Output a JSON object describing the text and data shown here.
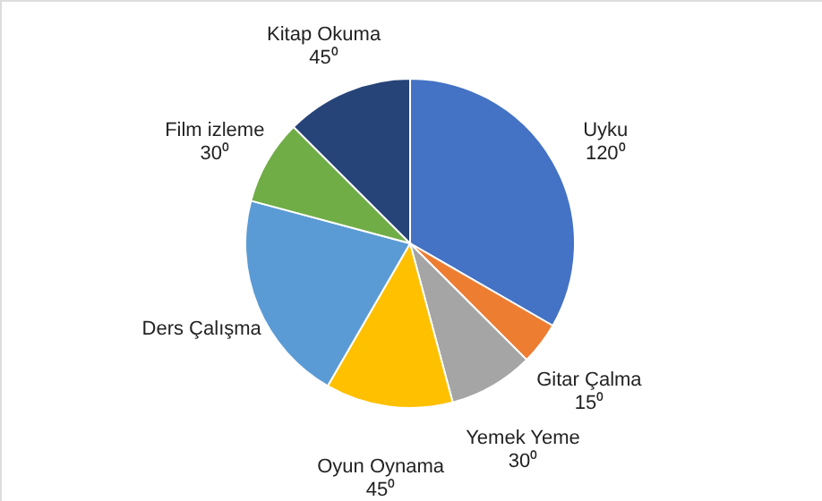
{
  "chart_data": {
    "type": "pie",
    "categories": [
      "Uyku",
      "Gitar Çalma",
      "Yemek Yeme",
      "Oyun Oynama",
      "Ders Çalışma",
      "Film izleme",
      "Kitap Okuma"
    ],
    "values": [
      120,
      15,
      30,
      45,
      75,
      30,
      45
    ],
    "value_labels": [
      "120⁰",
      "15⁰",
      "30⁰",
      "45⁰",
      null,
      "30⁰",
      "45⁰"
    ],
    "colors": [
      "#4472c4",
      "#ed7d31",
      "#a5a5a5",
      "#ffc000",
      "#5b9bd5",
      "#70ad47",
      "#264478"
    ]
  }
}
